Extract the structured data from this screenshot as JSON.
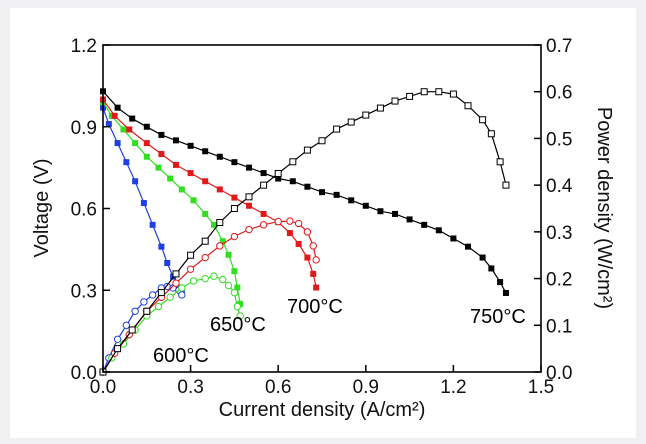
{
  "chart_data": {
    "type": "line",
    "title": "",
    "xlabel": "Current density (A/cm²)",
    "ylabel_left": "Voltage (V)",
    "ylabel_right": "Power density (W/cm²)",
    "xlim": [
      0,
      1.5
    ],
    "ylim_left": [
      0,
      1.2
    ],
    "ylim_right": [
      0,
      0.7
    ],
    "x_ticks": [
      "0.0",
      "0.3",
      "0.6",
      "0.9",
      "1.2",
      "1.5"
    ],
    "y_ticks_left": [
      "0.0",
      "0.3",
      "0.6",
      "0.9",
      "1.2"
    ],
    "y_ticks_right": [
      "0.0",
      "0.1",
      "0.2",
      "0.3",
      "0.4",
      "0.5",
      "0.6",
      "0.7"
    ],
    "grid": false,
    "series": [
      {
        "name": "600°C",
        "axis": "left",
        "kind": "voltage",
        "color": "#1f3fe0",
        "marker": "filled-square",
        "x": [
          0,
          0.02,
          0.05,
          0.08,
          0.11,
          0.14,
          0.17,
          0.2,
          0.22,
          0.24,
          0.26,
          0.27
        ],
        "y": [
          0.97,
          0.91,
          0.84,
          0.77,
          0.7,
          0.62,
          0.54,
          0.46,
          0.4,
          0.35,
          0.31,
          0.29
        ]
      },
      {
        "name": "600°C",
        "axis": "right",
        "kind": "power",
        "color": "#1f3fe0",
        "marker": "open-circle",
        "x": [
          0,
          0.02,
          0.05,
          0.08,
          0.11,
          0.14,
          0.17,
          0.2,
          0.22,
          0.24,
          0.26,
          0.27
        ],
        "y": [
          0,
          0.03,
          0.07,
          0.1,
          0.13,
          0.15,
          0.165,
          0.18,
          0.183,
          0.18,
          0.175,
          0.165
        ]
      },
      {
        "name": "650°C",
        "axis": "left",
        "kind": "voltage",
        "color": "#33dd22",
        "marker": "filled-square",
        "x": [
          0,
          0.03,
          0.07,
          0.11,
          0.15,
          0.19,
          0.23,
          0.27,
          0.31,
          0.35,
          0.38,
          0.41,
          0.43,
          0.45,
          0.46,
          0.47
        ],
        "y": [
          0.99,
          0.94,
          0.89,
          0.84,
          0.79,
          0.75,
          0.71,
          0.67,
          0.63,
          0.58,
          0.54,
          0.48,
          0.43,
          0.37,
          0.31,
          0.25
        ]
      },
      {
        "name": "650°C",
        "axis": "right",
        "kind": "power",
        "color": "#33dd22",
        "marker": "open-circle",
        "x": [
          0,
          0.03,
          0.07,
          0.11,
          0.15,
          0.19,
          0.23,
          0.27,
          0.31,
          0.35,
          0.38,
          0.41,
          0.43,
          0.45,
          0.46,
          0.47
        ],
        "y": [
          0,
          0.03,
          0.06,
          0.09,
          0.12,
          0.14,
          0.16,
          0.18,
          0.195,
          0.2,
          0.205,
          0.198,
          0.185,
          0.17,
          0.14,
          0.12
        ]
      },
      {
        "name": "700°C",
        "axis": "left",
        "kind": "voltage",
        "color": "#e01a1a",
        "marker": "filled-square",
        "x": [
          0,
          0.04,
          0.09,
          0.15,
          0.2,
          0.25,
          0.3,
          0.35,
          0.4,
          0.45,
          0.5,
          0.55,
          0.6,
          0.64,
          0.67,
          0.7,
          0.72,
          0.73
        ],
        "y": [
          1.0,
          0.94,
          0.89,
          0.84,
          0.8,
          0.76,
          0.73,
          0.7,
          0.67,
          0.64,
          0.61,
          0.58,
          0.55,
          0.51,
          0.47,
          0.42,
          0.36,
          0.31
        ]
      },
      {
        "name": "700°C",
        "axis": "right",
        "kind": "power",
        "color": "#e01a1a",
        "marker": "open-circle",
        "x": [
          0,
          0.04,
          0.09,
          0.15,
          0.2,
          0.25,
          0.3,
          0.35,
          0.4,
          0.45,
          0.5,
          0.55,
          0.6,
          0.64,
          0.67,
          0.7,
          0.72,
          0.73
        ],
        "y": [
          0,
          0.04,
          0.08,
          0.13,
          0.16,
          0.19,
          0.22,
          0.245,
          0.27,
          0.29,
          0.305,
          0.315,
          0.322,
          0.323,
          0.318,
          0.3,
          0.27,
          0.24
        ]
      },
      {
        "name": "750°C",
        "axis": "left",
        "kind": "voltage",
        "color": "#000000",
        "marker": "filled-square",
        "x": [
          0,
          0.05,
          0.1,
          0.15,
          0.2,
          0.25,
          0.3,
          0.35,
          0.4,
          0.45,
          0.5,
          0.55,
          0.6,
          0.65,
          0.7,
          0.75,
          0.8,
          0.85,
          0.9,
          0.95,
          1.0,
          1.05,
          1.1,
          1.15,
          1.2,
          1.25,
          1.3,
          1.33,
          1.36,
          1.38
        ],
        "y": [
          1.03,
          0.97,
          0.93,
          0.9,
          0.87,
          0.85,
          0.83,
          0.81,
          0.79,
          0.77,
          0.75,
          0.73,
          0.71,
          0.7,
          0.68,
          0.66,
          0.65,
          0.63,
          0.61,
          0.59,
          0.58,
          0.56,
          0.54,
          0.52,
          0.49,
          0.46,
          0.42,
          0.38,
          0.33,
          0.29
        ]
      },
      {
        "name": "750°C",
        "axis": "right",
        "kind": "power",
        "color": "#000000",
        "marker": "open-square",
        "x": [
          0,
          0.05,
          0.1,
          0.15,
          0.2,
          0.25,
          0.3,
          0.35,
          0.4,
          0.45,
          0.5,
          0.55,
          0.6,
          0.65,
          0.7,
          0.75,
          0.8,
          0.85,
          0.9,
          0.95,
          1.0,
          1.05,
          1.1,
          1.15,
          1.2,
          1.25,
          1.3,
          1.33,
          1.36,
          1.38
        ],
        "y": [
          0,
          0.05,
          0.09,
          0.13,
          0.17,
          0.21,
          0.25,
          0.28,
          0.32,
          0.35,
          0.375,
          0.4,
          0.425,
          0.45,
          0.475,
          0.495,
          0.52,
          0.535,
          0.55,
          0.565,
          0.58,
          0.59,
          0.6,
          0.6,
          0.595,
          0.57,
          0.54,
          0.51,
          0.45,
          0.4
        ]
      }
    ],
    "annotations": [
      {
        "text": "600°C",
        "color": "#1f3fe0"
      },
      {
        "text": "650°C",
        "color": "#33dd22"
      },
      {
        "text": "700°C",
        "color": "#e01a1a"
      },
      {
        "text": "750°C",
        "color": "#111111"
      }
    ]
  }
}
